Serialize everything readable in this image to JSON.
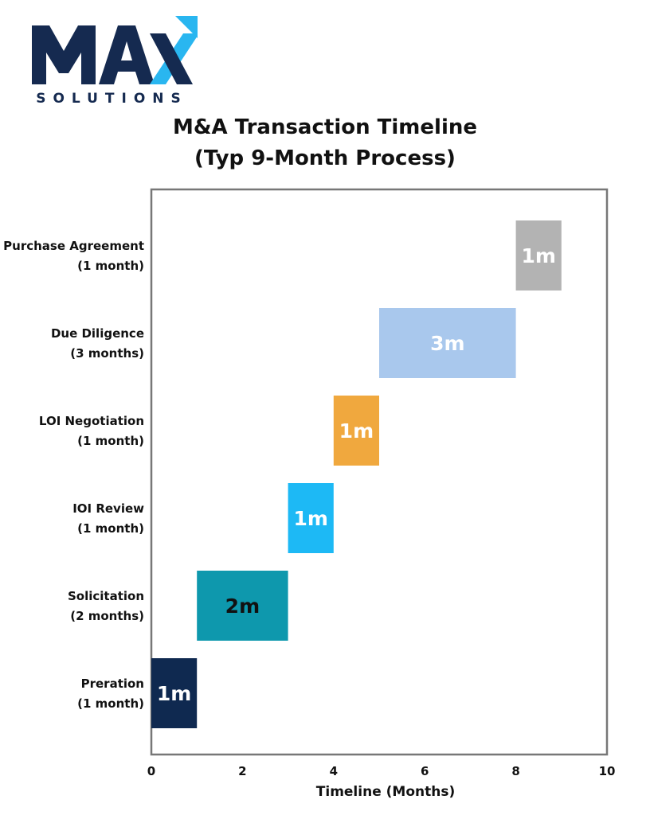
{
  "logo": {
    "mark": "MAX",
    "subtitle": "SOLUTIONS",
    "colors": {
      "navy": "#152a50",
      "arrow": "#29b6f0"
    }
  },
  "chart_data": {
    "type": "bar",
    "orientation": "horizontal",
    "title": [
      "M&A Transaction Timeline",
      "(Typ 9-Month Process)"
    ],
    "xlabel": "Timeline (Months)",
    "ylabel": "",
    "xlim": [
      0,
      10
    ],
    "xticks": [
      0,
      2,
      4,
      6,
      8,
      10
    ],
    "grid": false,
    "tasks": [
      {
        "label": [
          "Preration",
          "(1 month)"
        ],
        "start": 0,
        "duration": 1,
        "bar_label": "1m",
        "color": "#0f2950",
        "text_color": "#ffffff"
      },
      {
        "label": [
          "Solicitation",
          "(2 months)"
        ],
        "start": 1,
        "duration": 2,
        "bar_label": "2m",
        "color": "#0e98ad",
        "text_color": "#111111"
      },
      {
        "label": [
          "IOI Review",
          "(1 month)"
        ],
        "start": 3,
        "duration": 1,
        "bar_label": "1m",
        "color": "#1db9f5",
        "text_color": "#ffffff"
      },
      {
        "label": [
          "LOI Negotiation",
          "(1 month)"
        ],
        "start": 4,
        "duration": 1,
        "bar_label": "1m",
        "color": "#f0a83e",
        "text_color": "#ffffff"
      },
      {
        "label": [
          "Due Diligence",
          "(3 months)"
        ],
        "start": 5,
        "duration": 3,
        "bar_label": "3m",
        "color": "#a9c8ed",
        "text_color": "#ffffff"
      },
      {
        "label": [
          "Purchase Agreement",
          "(1 month)"
        ],
        "start": 8,
        "duration": 1,
        "bar_label": "1m",
        "color": "#b3b3b3",
        "text_color": "#ffffff"
      }
    ]
  }
}
